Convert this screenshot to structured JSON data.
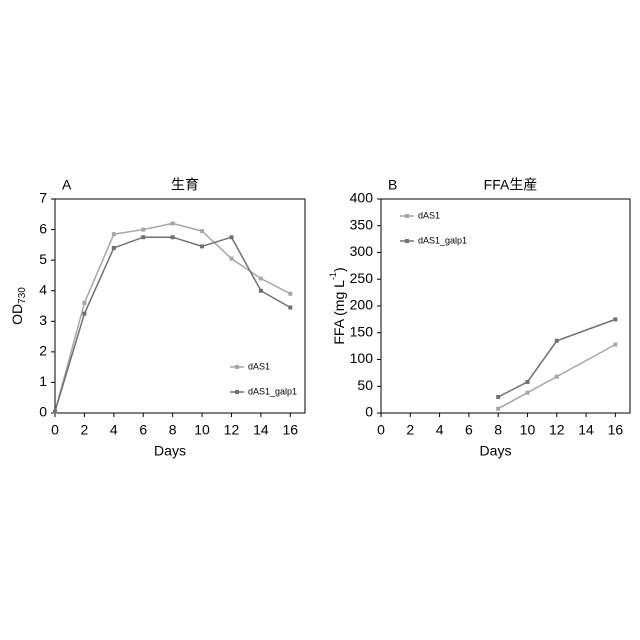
{
  "chart_data": [
    {
      "type": "line",
      "panel_label": "A",
      "title": "生育",
      "x_label": "Days",
      "y_label": "OD",
      "y_label_subscript": "730",
      "xlim": [
        0,
        17
      ],
      "xticks": [
        0,
        2,
        4,
        6,
        8,
        10,
        12,
        14,
        16
      ],
      "ylim": [
        0,
        7
      ],
      "yticks": [
        0,
        1,
        2,
        3,
        4,
        5,
        6,
        7
      ],
      "legend": "lower right",
      "series": [
        {
          "name": "dAS1",
          "color": "#a6a6a6",
          "x": [
            0,
            2,
            4,
            6,
            8,
            10,
            12,
            14,
            16
          ],
          "values": [
            0.05,
            3.6,
            5.85,
            6.0,
            6.2,
            5.95,
            5.05,
            4.4,
            3.9
          ]
        },
        {
          "name": "dAS1_galp1",
          "color": "#707070",
          "x": [
            0,
            2,
            4,
            6,
            8,
            10,
            12,
            14,
            16
          ],
          "values": [
            0.05,
            3.25,
            5.4,
            5.75,
            5.75,
            5.45,
            5.75,
            4.0,
            3.45
          ]
        }
      ]
    },
    {
      "type": "line",
      "panel_label": "B",
      "title": "FFA生産",
      "x_label": "Days",
      "y_label": "FFA (mg L",
      "y_label_superscript": "-1",
      "y_label_end": ")",
      "xlim": [
        0,
        17
      ],
      "xticks": [
        0,
        2,
        4,
        6,
        8,
        10,
        12,
        14,
        16
      ],
      "ylim": [
        0,
        400
      ],
      "yticks": [
        0,
        50,
        100,
        150,
        200,
        250,
        300,
        350,
        400
      ],
      "legend": "upper left",
      "series": [
        {
          "name": "dAS1",
          "color": "#a6a6a6",
          "x": [
            8,
            10,
            12,
            16
          ],
          "values": [
            8,
            38,
            68,
            128
          ]
        },
        {
          "name": "dAS1_galp1",
          "color": "#707070",
          "x": [
            8,
            10,
            12,
            16
          ],
          "values": [
            30,
            58,
            135,
            175
          ]
        }
      ]
    }
  ]
}
